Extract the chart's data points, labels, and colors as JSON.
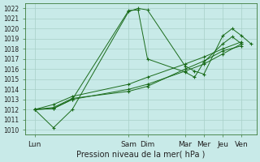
{
  "xlabel": "Pression niveau de la mer( hPa )",
  "xtick_labels": [
    "Lun",
    "Sam",
    "Dim",
    "Mar",
    "Mer",
    "Jeu",
    "Ven"
  ],
  "xtick_positions": [
    0,
    5,
    6,
    8,
    9,
    10,
    11
  ],
  "xlim": [
    -0.5,
    11.8
  ],
  "ylim": [
    1009.5,
    1022.5
  ],
  "ytick_min": 1010,
  "ytick_max": 1022,
  "ytick_step": 1,
  "background_color": "#c8eae8",
  "grid_color": "#a8cfc8",
  "line_color": "#1a6b1a",
  "line1_x": [
    0,
    1,
    2,
    5,
    5.5,
    6,
    8,
    8.5,
    9,
    10,
    10.5,
    11,
    11.5
  ],
  "line1_y": [
    1012.0,
    1010.2,
    1012.0,
    1021.7,
    1022.0,
    1021.85,
    1016.3,
    1015.8,
    1015.5,
    1019.3,
    1020.0,
    1019.3,
    1018.5
  ],
  "line2_x": [
    0,
    1,
    2,
    5,
    5.5,
    6,
    8,
    8.5,
    9,
    10,
    10.5,
    11
  ],
  "line2_y": [
    1012.0,
    1012.1,
    1013.0,
    1021.8,
    1021.85,
    1017.0,
    1015.7,
    1015.2,
    1016.7,
    1018.5,
    1019.2,
    1018.5
  ],
  "line3_x": [
    0,
    1,
    2,
    5,
    6,
    8,
    9,
    10,
    11
  ],
  "line3_y": [
    1012.0,
    1012.1,
    1013.0,
    1014.0,
    1014.5,
    1015.8,
    1016.5,
    1017.5,
    1018.5
  ],
  "line4_x": [
    0,
    1,
    2,
    5,
    6,
    8,
    9,
    10,
    11
  ],
  "line4_y": [
    1012.0,
    1012.2,
    1013.1,
    1013.8,
    1014.3,
    1016.0,
    1016.8,
    1017.8,
    1018.3
  ],
  "line5_x": [
    0,
    1,
    2,
    5,
    6,
    8,
    9,
    10,
    11
  ],
  "line5_y": [
    1012.0,
    1012.5,
    1013.3,
    1014.5,
    1015.2,
    1016.5,
    1017.2,
    1018.0,
    1018.7
  ]
}
